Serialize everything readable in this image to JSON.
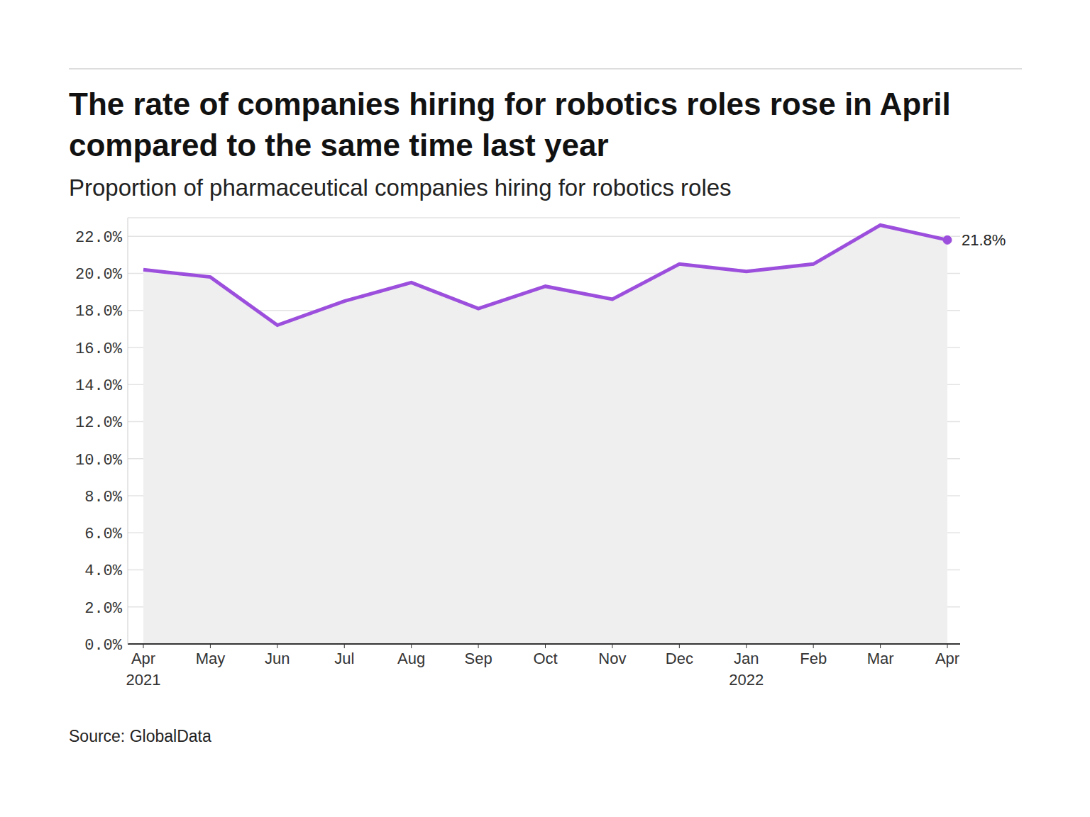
{
  "chart_data": {
    "type": "area",
    "title": "The rate of companies hiring for robotics roles rose in April compared to the same time last year",
    "subtitle": "Proportion of pharmaceutical companies hiring for robotics roles",
    "source": "Source: GlobalData",
    "categories": [
      "Apr 2021",
      "May",
      "Jun",
      "Jul",
      "Aug",
      "Sep",
      "Oct",
      "Nov",
      "Dec",
      "Jan 2022",
      "Feb",
      "Mar",
      "Apr"
    ],
    "values": [
      20.2,
      19.8,
      17.2,
      18.5,
      19.5,
      18.1,
      19.3,
      18.6,
      20.5,
      20.1,
      20.5,
      22.6,
      21.8
    ],
    "color": "#9c4fdc",
    "ylim": [
      0,
      23
    ],
    "yticks": [
      {
        "value": 0,
        "label": "0.0%"
      },
      {
        "value": 2,
        "label": "2.0%"
      },
      {
        "value": 4,
        "label": "4.0%"
      },
      {
        "value": 6,
        "label": "6.0%"
      },
      {
        "value": 8,
        "label": "8.0%"
      },
      {
        "value": 10,
        "label": "10.0%"
      },
      {
        "value": 12,
        "label": "12.0%"
      },
      {
        "value": 14,
        "label": "14.0%"
      },
      {
        "value": 16,
        "label": "16.0%"
      },
      {
        "value": 18,
        "label": "18.0%"
      },
      {
        "value": 20,
        "label": "20.0%"
      },
      {
        "value": 22,
        "label": "22.0%"
      }
    ],
    "grid": true,
    "annotations": [
      {
        "x": "Apr",
        "y": 21.8,
        "text": "21.8%"
      }
    ]
  }
}
